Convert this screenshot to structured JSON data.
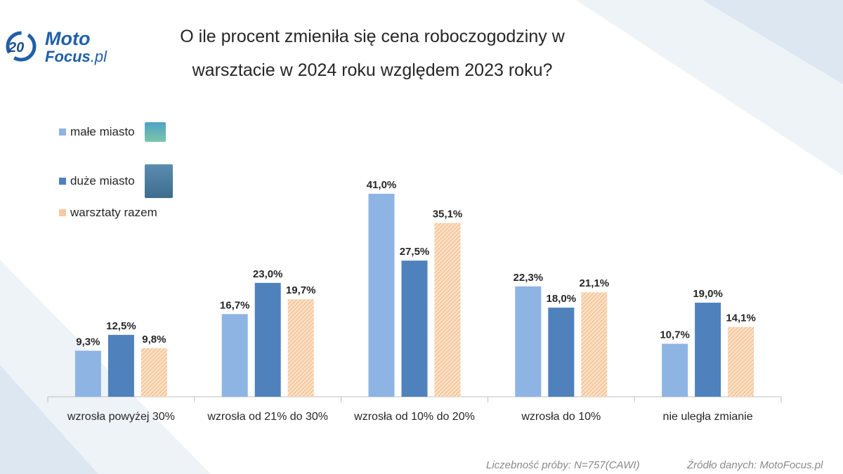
{
  "logo": {
    "text": "MotoFocus.pl",
    "badge": "20 LAT"
  },
  "colors": {
    "male": "#8eb4e3",
    "duze": "#4f81bd",
    "razem": "#f7c9a0"
  },
  "chart_data": {
    "type": "bar",
    "title": "O ile procent zmieniła się cena roboczogodziny w warsztacie w 2024 roku względem 2023 roku?",
    "categories": [
      "wzrosła powyżej 30%",
      "wzrosła od 21% do 30%",
      "wzrosła od 10% do 20%",
      "wzrosła do 10%",
      "nie uległa zmianie"
    ],
    "series": [
      {
        "name": "małe miasto",
        "values": [
          9.3,
          16.7,
          41.0,
          22.3,
          10.7
        ],
        "labels": [
          "9,3%",
          "16,7%",
          "41,0%",
          "22,3%",
          "10,7%"
        ]
      },
      {
        "name": "duże miasto",
        "values": [
          12.5,
          23.0,
          27.5,
          18.0,
          19.0
        ],
        "labels": [
          "12,5%",
          "23,0%",
          "27,5%",
          "18,0%",
          "19,0%"
        ]
      },
      {
        "name": "warsztaty razem",
        "values": [
          9.8,
          19.7,
          35.1,
          21.1,
          14.1
        ],
        "labels": [
          "9,8%",
          "19,7%",
          "35,1%",
          "21,1%",
          "14,1%"
        ]
      }
    ],
    "legend_position": "top-left",
    "grid": false
  },
  "title_lines": [
    "O ile procent zmieniła się cena roboczogodziny w",
    "warsztacie w 2024 roku względem 2023 roku?"
  ],
  "footer": {
    "sample": "Liczebność próby: N=757(CAWI)",
    "source": "Źródło danych: MotoFocus.pl"
  }
}
